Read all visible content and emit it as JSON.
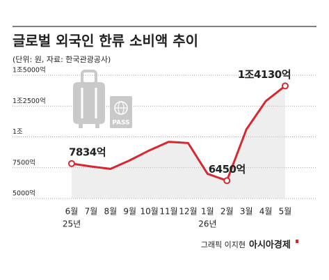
{
  "chart_data": {
    "type": "line",
    "title": "글로벌 외국인 한류 소비액 추이",
    "subtitle": "(단위: 원, 자료: 한국관광공사)",
    "categories": [
      "6월",
      "7월",
      "8월",
      "9월",
      "10월",
      "11월",
      "12월",
      "1월",
      "2월",
      "3월",
      "4월",
      "5월"
    ],
    "category_years": [
      "25년",
      null,
      null,
      null,
      null,
      null,
      null,
      "26년",
      null,
      null,
      null,
      null
    ],
    "values": [
      7834,
      7600,
      7400,
      8100,
      8900,
      9600,
      9500,
      7000,
      6450,
      10600,
      12900,
      14130
    ],
    "value_labels": [
      "7834억",
      null,
      null,
      null,
      null,
      null,
      null,
      null,
      "6450억",
      null,
      null,
      "1조4130억"
    ],
    "color": "#d7282f",
    "ylim": [
      5000,
      15000
    ],
    "yticks": [
      {
        "value": 5000,
        "label": "5000억"
      },
      {
        "value": 7500,
        "label": "7500억"
      },
      {
        "value": 10000,
        "label": "1조"
      },
      {
        "value": 12500,
        "label": "1조2500억"
      },
      {
        "value": 15000,
        "label": "1조5000억"
      }
    ],
    "grid": true,
    "icon_text": "PASS",
    "credit": "그래픽 이지현",
    "publisher": "아시아경제"
  }
}
